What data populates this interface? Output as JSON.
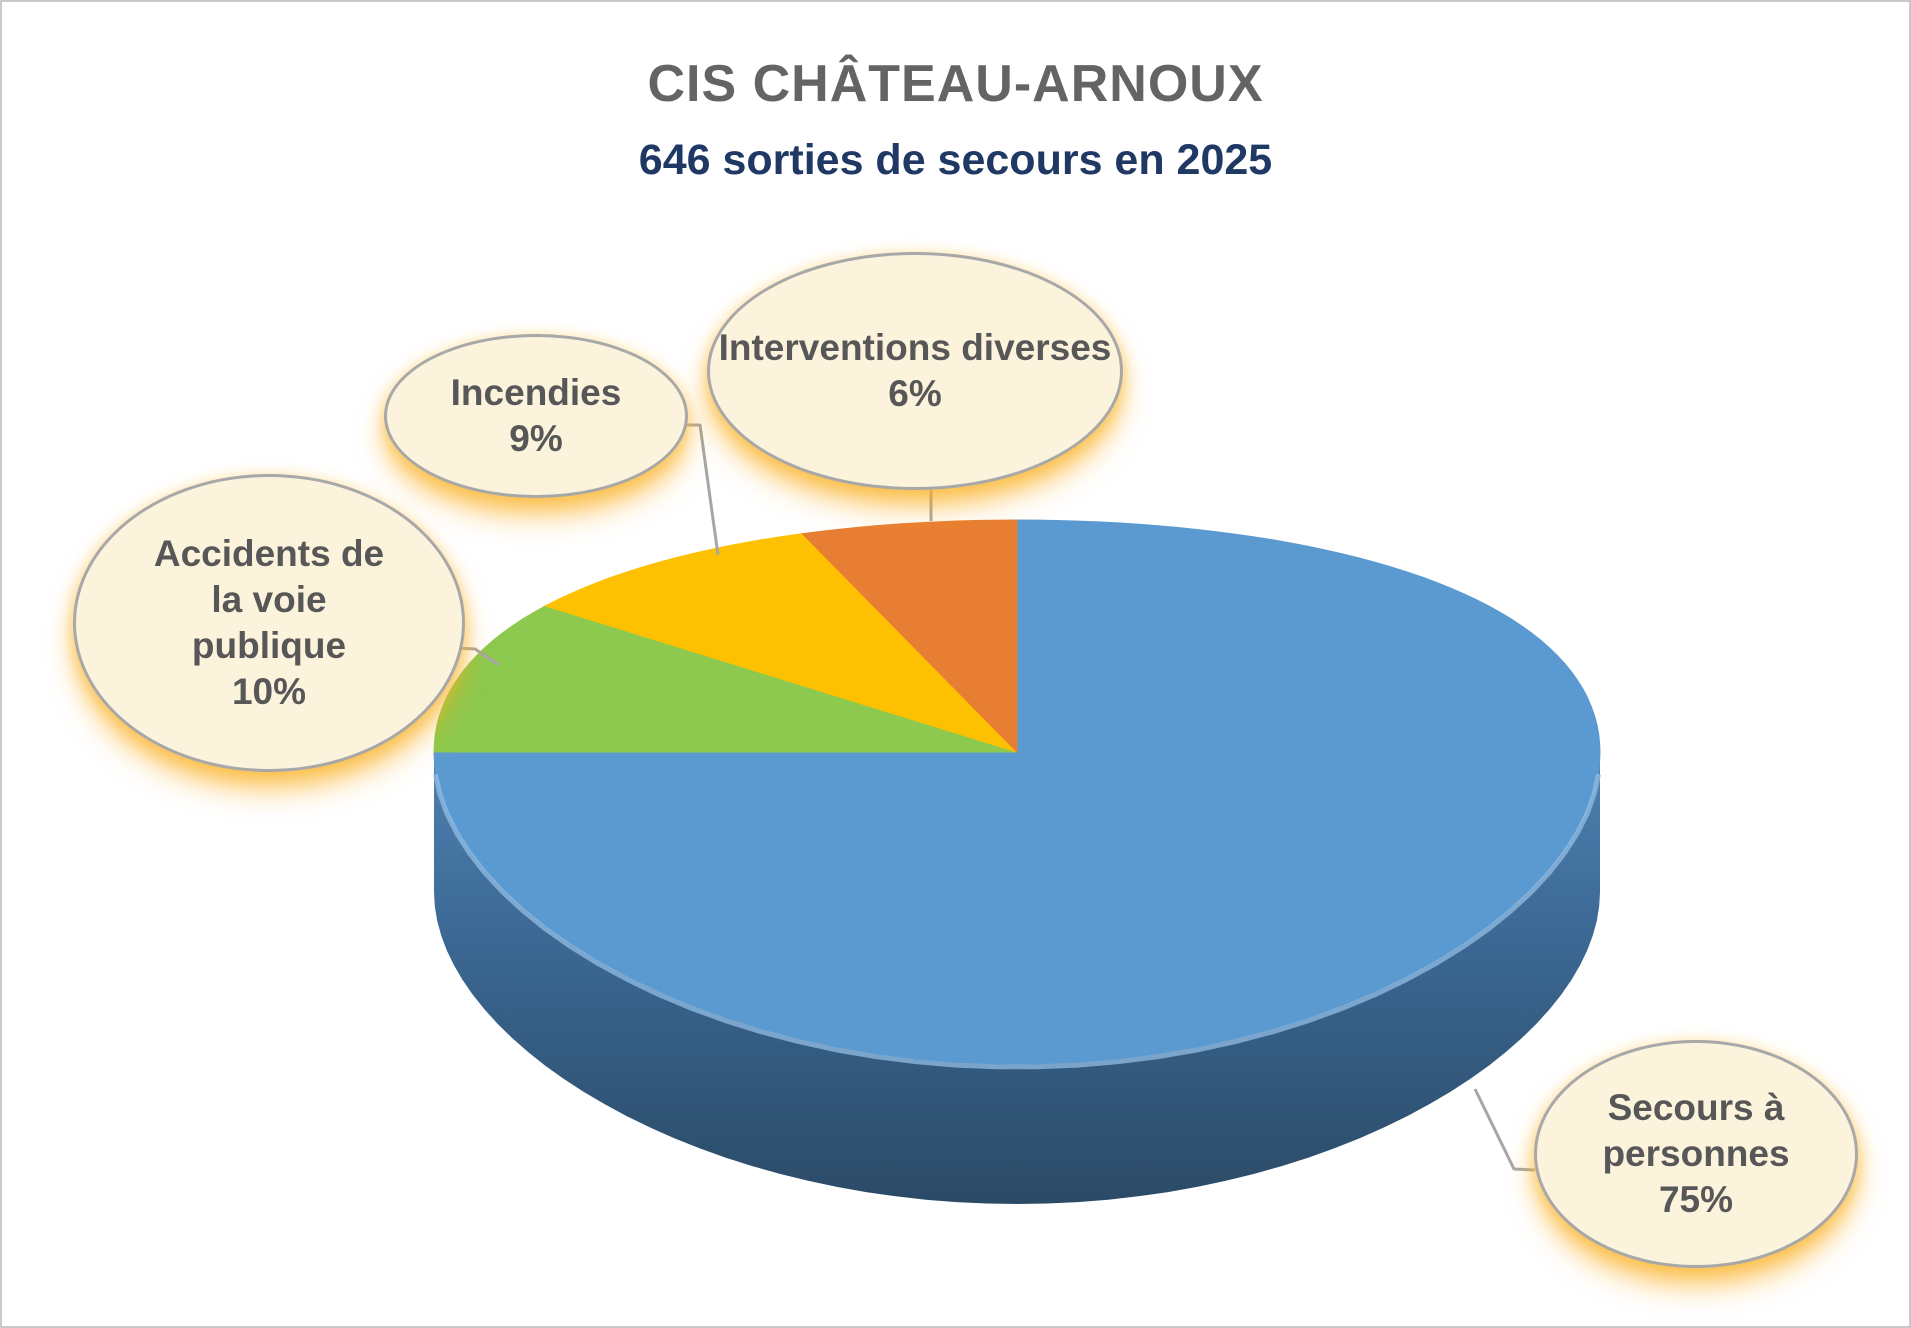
{
  "chart_data": {
    "type": "pie",
    "effect_3d": true,
    "title": "CIS CHÂTEAU-ARNOUX",
    "subtitle": "646 sorties de secours en 2025",
    "total_sorties": 646,
    "year": "2025",
    "unit": "%",
    "legend_position": "callout-bubbles",
    "start_angle_deg": 0,
    "direction": "clockwise",
    "slices": [
      {
        "label": "Secours à personnes",
        "value": 75,
        "pct_label": "75%",
        "color": "#5b9ad0"
      },
      {
        "label": "Accidents de la voie publique",
        "value": 10,
        "pct_label": "10%",
        "color": "#8dc94f"
      },
      {
        "label": "Incendies",
        "value": 9,
        "pct_label": "9%",
        "color": "#fec101"
      },
      {
        "label": "Interventions diverses",
        "value": 6,
        "pct_label": "6%",
        "color": "#e87e33"
      }
    ],
    "title_color": "#646464",
    "subtitle_color": "#1f3864",
    "callout_fill": "#fbf3dc",
    "callout_border": "#a8a8a8",
    "callout_text_color": "#575757"
  }
}
